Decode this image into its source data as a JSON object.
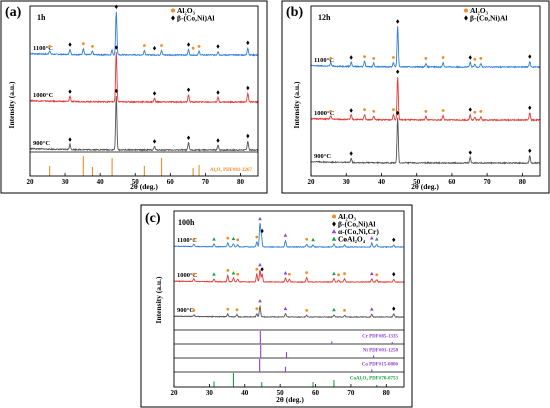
{
  "colors": {
    "al2o3": "#f28c28",
    "beta": "#000000",
    "alpha": "#8e3fd6",
    "coal2o4": "#17a045",
    "curve_1100": "#2f7fd9",
    "curve_1000": "#e53935",
    "curve_900": "#555555"
  },
  "chart_data": [
    {
      "type": "line",
      "panel_label": "(a)",
      "time_label": "1h",
      "xlabel": "2θ (deg.)",
      "ylabel": "Intensity (a.u.)",
      "xlim": [
        20,
        85
      ],
      "xticks": [
        20,
        30,
        40,
        50,
        60,
        70,
        80
      ],
      "grid": false,
      "legend_position": "top-right",
      "legend": [
        {
          "symbol": "●",
          "name": "Al₂O₃",
          "color": "#f28c28"
        },
        {
          "symbol": "◆",
          "name": "β-(Co,Ni)Al",
          "color": "#000000"
        }
      ],
      "series": [
        {
          "name": "1100°C",
          "color": "#2f7fd9",
          "peaks": [
            [
              25.6,
              4
            ],
            [
              31.4,
              6
            ],
            [
              35.2,
              7
            ],
            [
              37.8,
              4
            ],
            [
              43.4,
              5
            ],
            [
              44.6,
              48
            ],
            [
              52.6,
              5
            ],
            [
              57.5,
              5
            ],
            [
              65.2,
              6
            ],
            [
              68.2,
              4
            ],
            [
              73.6,
              4
            ],
            [
              82.1,
              8
            ]
          ],
          "markers": [
            {
              "x": 25.6,
              "t": "a"
            },
            {
              "x": 31.4,
              "t": "b"
            },
            {
              "x": 35.2,
              "t": "a"
            },
            {
              "x": 37.8,
              "t": "a"
            },
            {
              "x": 44.6,
              "t": "b"
            },
            {
              "x": 52.6,
              "t": "a"
            },
            {
              "x": 55.5,
              "t": "b"
            },
            {
              "x": 57.5,
              "t": "a"
            },
            {
              "x": 65.2,
              "t": "b"
            },
            {
              "x": 66.5,
              "t": "a"
            },
            {
              "x": 68.2,
              "t": "a"
            },
            {
              "x": 73.6,
              "t": "b"
            },
            {
              "x": 82.1,
              "t": "b"
            }
          ]
        },
        {
          "name": "1000°C",
          "color": "#e53935",
          "peaks": [
            [
              31.4,
              6
            ],
            [
              44.6,
              55
            ],
            [
              55.5,
              4
            ],
            [
              65.2,
              8
            ],
            [
              73.6,
              5
            ],
            [
              82.1,
              10
            ]
          ],
          "markers": [
            {
              "x": 31.4,
              "t": "b"
            },
            {
              "x": 44.6,
              "t": "b"
            },
            {
              "x": 55.5,
              "t": "b"
            },
            {
              "x": 65.2,
              "t": "b"
            },
            {
              "x": 73.6,
              "t": "b"
            },
            {
              "x": 82.1,
              "t": "b"
            }
          ]
        },
        {
          "name": "900°C",
          "color": "#555555",
          "peaks": [
            [
              31.4,
              6
            ],
            [
              44.6,
              60
            ],
            [
              55.5,
              4
            ],
            [
              65.2,
              8
            ],
            [
              73.6,
              5
            ],
            [
              82.1,
              10
            ]
          ],
          "markers": [
            {
              "x": 31.4,
              "t": "b"
            },
            {
              "x": 44.6,
              "t": "b"
            },
            {
              "x": 55.5,
              "t": "b"
            },
            {
              "x": 65.2,
              "t": "b"
            },
            {
              "x": 73.6,
              "t": "b"
            },
            {
              "x": 82.1,
              "t": "b"
            }
          ]
        }
      ],
      "references": [
        {
          "label": "Al₂O₃ PDF#81-2267",
          "color": "#f28c28",
          "sticks": [
            [
              25.6,
              0.5
            ],
            [
              35.2,
              1.0
            ],
            [
              37.8,
              0.45
            ],
            [
              43.4,
              0.9
            ],
            [
              52.6,
              0.5
            ],
            [
              57.5,
              0.9
            ],
            [
              66.5,
              0.4
            ],
            [
              68.2,
              0.55
            ]
          ]
        }
      ]
    },
    {
      "type": "line",
      "panel_label": "(b)",
      "time_label": "12h",
      "xlabel": "2θ (deg.)",
      "ylabel": "Intensity (a.u.)",
      "xlim": [
        20,
        85
      ],
      "xticks": [
        20,
        30,
        40,
        50,
        60,
        70,
        80
      ],
      "grid": false,
      "legend_position": "top-right",
      "legend": [
        {
          "symbol": "●",
          "name": "Al₂O₃",
          "color": "#f28c28"
        },
        {
          "symbol": "◆",
          "name": "β-(Co,Ni)Al",
          "color": "#000000"
        }
      ],
      "series": [
        {
          "name": "1100°C",
          "color": "#2f7fd9",
          "peaks": [
            [
              25.6,
              4
            ],
            [
              31.4,
              5
            ],
            [
              35.2,
              6
            ],
            [
              37.8,
              4
            ],
            [
              43.4,
              5
            ],
            [
              44.6,
              45
            ],
            [
              52.6,
              4
            ],
            [
              57.5,
              5
            ],
            [
              65.2,
              5
            ],
            [
              66.5,
              3
            ],
            [
              68.2,
              4
            ],
            [
              82.1,
              6
            ]
          ],
          "markers": [
            {
              "x": 25.6,
              "t": "a"
            },
            {
              "x": 31.4,
              "t": "b"
            },
            {
              "x": 35.2,
              "t": "a"
            },
            {
              "x": 37.8,
              "t": "a"
            },
            {
              "x": 43.4,
              "t": "a"
            },
            {
              "x": 44.6,
              "t": "b"
            },
            {
              "x": 52.6,
              "t": "a"
            },
            {
              "x": 57.5,
              "t": "a"
            },
            {
              "x": 65.2,
              "t": "b"
            },
            {
              "x": 66.5,
              "t": "a"
            },
            {
              "x": 68.2,
              "t": "a"
            },
            {
              "x": 82.1,
              "t": "b"
            }
          ]
        },
        {
          "name": "1000°C",
          "color": "#e53935",
          "peaks": [
            [
              25.6,
              4
            ],
            [
              31.4,
              5
            ],
            [
              35.2,
              6
            ],
            [
              37.8,
              4
            ],
            [
              43.4,
              6
            ],
            [
              44.6,
              48
            ],
            [
              52.6,
              4
            ],
            [
              57.5,
              5
            ],
            [
              65.2,
              6
            ],
            [
              66.5,
              3
            ],
            [
              68.2,
              4
            ],
            [
              82.1,
              8
            ]
          ],
          "markers": [
            {
              "x": 25.6,
              "t": "a"
            },
            {
              "x": 31.4,
              "t": "b"
            },
            {
              "x": 35.2,
              "t": "a"
            },
            {
              "x": 37.8,
              "t": "a"
            },
            {
              "x": 43.4,
              "t": "a"
            },
            {
              "x": 44.6,
              "t": "b"
            },
            {
              "x": 52.6,
              "t": "a"
            },
            {
              "x": 57.5,
              "t": "a"
            },
            {
              "x": 65.2,
              "t": "b"
            },
            {
              "x": 66.5,
              "t": "a"
            },
            {
              "x": 68.2,
              "t": "a"
            },
            {
              "x": 82.1,
              "t": "b"
            }
          ]
        },
        {
          "name": "900°C",
          "color": "#555555",
          "peaks": [
            [
              31.4,
              5
            ],
            [
              44.6,
              50
            ],
            [
              65.2,
              6
            ],
            [
              82.1,
              8
            ]
          ],
          "markers": [
            {
              "x": 31.4,
              "t": "b"
            },
            {
              "x": 44.6,
              "t": "b"
            },
            {
              "x": 65.2,
              "t": "b"
            },
            {
              "x": 82.1,
              "t": "b"
            }
          ]
        }
      ]
    },
    {
      "type": "line",
      "panel_label": "(c)",
      "time_label": "100h",
      "xlabel": "2θ (deg.)",
      "ylabel": "Intensity (a.u.)",
      "xlim": [
        20,
        85
      ],
      "xticks": [
        20,
        30,
        40,
        50,
        60,
        70,
        80
      ],
      "grid": false,
      "legend_position": "top-right",
      "legend": [
        {
          "symbol": "●",
          "name": "Al₂O₃",
          "color": "#f28c28"
        },
        {
          "symbol": "◆",
          "name": "β-(Co,Ni)Al",
          "color": "#000000"
        },
        {
          "symbol": "▲",
          "name": "α-(Co,Ni,Cr)",
          "color": "#8e3fd6"
        },
        {
          "symbol": "▲",
          "name": "CoAl₂O₄",
          "color": "#17a045"
        }
      ],
      "series": [
        {
          "name": "1100°C",
          "color": "#2f7fd9",
          "peaks": [
            [
              25.6,
              4
            ],
            [
              31.3,
              5
            ],
            [
              35.2,
              7
            ],
            [
              36.8,
              6
            ],
            [
              38.0,
              4
            ],
            [
              43.4,
              9
            ],
            [
              44.3,
              42
            ],
            [
              44.7,
              20
            ],
            [
              51.5,
              12
            ],
            [
              57.5,
              5
            ],
            [
              59.3,
              4
            ],
            [
              65.2,
              6
            ],
            [
              68.2,
              4
            ],
            [
              75.9,
              7
            ],
            [
              77.3,
              5
            ],
            [
              82.1,
              4
            ]
          ],
          "markers": [
            {
              "x": 25.6,
              "t": "a"
            },
            {
              "x": 31.3,
              "t": "c"
            },
            {
              "x": 35.2,
              "t": "a"
            },
            {
              "x": 36.8,
              "t": "c"
            },
            {
              "x": 38.0,
              "t": "a"
            },
            {
              "x": 43.4,
              "t": "a"
            },
            {
              "x": 44.3,
              "t": "p"
            },
            {
              "x": 44.9,
              "t": "b"
            },
            {
              "x": 51.5,
              "t": "p"
            },
            {
              "x": 57.5,
              "t": "a"
            },
            {
              "x": 59.3,
              "t": "c"
            },
            {
              "x": 65.2,
              "t": "c"
            },
            {
              "x": 68.2,
              "t": "a"
            },
            {
              "x": 75.9,
              "t": "p"
            },
            {
              "x": 77.3,
              "t": "c"
            },
            {
              "x": 82.1,
              "t": "b"
            }
          ]
        },
        {
          "name": "1000°C",
          "color": "#e53935",
          "peaks": [
            [
              25.6,
              5
            ],
            [
              31.3,
              5
            ],
            [
              35.2,
              12
            ],
            [
              36.8,
              7
            ],
            [
              38.0,
              5
            ],
            [
              43.4,
              14
            ],
            [
              44.3,
              22
            ],
            [
              44.9,
              14
            ],
            [
              51.5,
              7
            ],
            [
              52.6,
              5
            ],
            [
              57.5,
              8
            ],
            [
              65.2,
              6
            ],
            [
              66.5,
              4
            ],
            [
              68.2,
              6
            ],
            [
              75.9,
              6
            ],
            [
              77.3,
              4
            ],
            [
              82.1,
              5
            ]
          ],
          "markers": [
            {
              "x": 25.6,
              "t": "a"
            },
            {
              "x": 31.3,
              "t": "c"
            },
            {
              "x": 35.2,
              "t": "a"
            },
            {
              "x": 36.8,
              "t": "c"
            },
            {
              "x": 38.0,
              "t": "a"
            },
            {
              "x": 43.4,
              "t": "a"
            },
            {
              "x": 44.3,
              "t": "p"
            },
            {
              "x": 44.9,
              "t": "b"
            },
            {
              "x": 51.5,
              "t": "p"
            },
            {
              "x": 52.6,
              "t": "a"
            },
            {
              "x": 57.5,
              "t": "a"
            },
            {
              "x": 65.2,
              "t": "c"
            },
            {
              "x": 66.5,
              "t": "a"
            },
            {
              "x": 68.2,
              "t": "a"
            },
            {
              "x": 75.9,
              "t": "p"
            },
            {
              "x": 77.3,
              "t": "a"
            },
            {
              "x": 82.1,
              "t": "b"
            }
          ]
        },
        {
          "name": "900°C",
          "color": "#555555",
          "peaks": [
            [
              25.6,
              3
            ],
            [
              35.2,
              5
            ],
            [
              37.8,
              4
            ],
            [
              43.4,
              6
            ],
            [
              44.3,
              20
            ],
            [
              51.5,
              6
            ],
            [
              57.5,
              3
            ],
            [
              65.2,
              4
            ],
            [
              68.2,
              3
            ],
            [
              75.9,
              5
            ],
            [
              82.1,
              6
            ]
          ],
          "markers": [
            {
              "x": 25.6,
              "t": "a"
            },
            {
              "x": 35.2,
              "t": "a"
            },
            {
              "x": 37.8,
              "t": "a"
            },
            {
              "x": 43.4,
              "t": "a"
            },
            {
              "x": 44.3,
              "t": "p"
            },
            {
              "x": 51.5,
              "t": "p"
            },
            {
              "x": 57.5,
              "t": "a"
            },
            {
              "x": 65.2,
              "t": "c"
            },
            {
              "x": 68.2,
              "t": "a"
            },
            {
              "x": 75.9,
              "t": "p"
            },
            {
              "x": 82.1,
              "t": "b"
            }
          ]
        }
      ],
      "references": [
        {
          "label": "Cr PDF#85-1335",
          "color": "#8e3fd6",
          "sticks": [
            [
              44.4,
              1.0
            ],
            [
              64.6,
              0.2
            ],
            [
              81.7,
              0.15
            ]
          ]
        },
        {
          "label": "Ni PDF#01-1258",
          "color": "#8e3fd6",
          "sticks": [
            [
              44.5,
              1.0
            ],
            [
              51.8,
              0.45
            ],
            [
              76.4,
              0.2
            ]
          ]
        },
        {
          "label": "Co PDF#15-0806",
          "color": "#8e3fd6",
          "sticks": [
            [
              44.2,
              1.0
            ],
            [
              51.5,
              0.4
            ],
            [
              75.9,
              0.2
            ]
          ]
        },
        {
          "label": "CoAl₂O₄ PDF#70-0753",
          "color": "#17a045",
          "sticks": [
            [
              31.3,
              0.4
            ],
            [
              36.8,
              1.0
            ],
            [
              44.8,
              0.35
            ],
            [
              59.3,
              0.35
            ],
            [
              65.2,
              0.5
            ],
            [
              77.3,
              0.15
            ]
          ]
        }
      ]
    }
  ]
}
